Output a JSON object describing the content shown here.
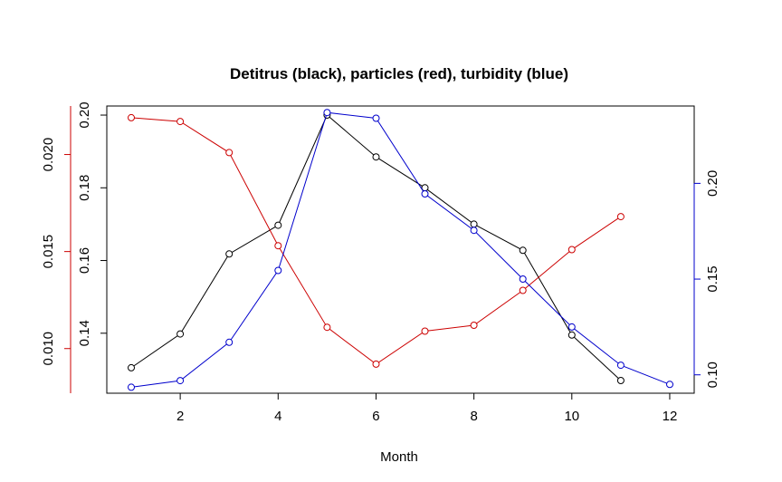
{
  "chart_data": {
    "type": "line",
    "title": "Detitrus (black), particles (red), turbidity (blue)",
    "xlabel": "Month",
    "xlim": [
      0.5,
      12.5
    ],
    "x_ticks": [
      2,
      4,
      6,
      8,
      10,
      12
    ],
    "marker": "open-circle",
    "grid": false,
    "legend": "none",
    "axes": {
      "left_inner": {
        "color": "#000000",
        "lim": [
          0.1235,
          0.2025
        ],
        "ticks": [
          0.14,
          0.16,
          0.18,
          0.2
        ],
        "tick_labels": [
          "0.14",
          "0.16",
          "0.18",
          "0.20"
        ]
      },
      "left_outer": {
        "color": "#cc0000",
        "lim": [
          0.0077,
          0.0225
        ],
        "ticks": [
          0.01,
          0.015,
          0.02
        ],
        "tick_labels": [
          "0.010",
          "0.015",
          "0.020"
        ]
      },
      "right": {
        "color": "#0000cc",
        "lim": [
          0.0904,
          0.2404
        ],
        "ticks": [
          0.1,
          0.15,
          0.2
        ],
        "tick_labels": [
          "0.10",
          "0.15",
          "0.20"
        ]
      }
    },
    "series": [
      {
        "axis": "left_inner",
        "color": "#000000",
        "x": [
          1,
          2,
          3,
          4,
          5,
          6,
          7,
          8,
          9,
          10,
          11
        ],
        "y": [
          0.1305,
          0.1398,
          0.1618,
          0.1697,
          0.2,
          0.1885,
          0.18,
          0.17,
          0.1628,
          0.1395,
          0.127
        ]
      },
      {
        "axis": "left_outer",
        "color": "#cc0000",
        "x": [
          1,
          2,
          3,
          4,
          5,
          6,
          7,
          8,
          9,
          10,
          11
        ],
        "y": [
          0.0219,
          0.0217,
          0.0201,
          0.0153,
          0.0111,
          0.0092,
          0.0109,
          0.0112,
          0.013,
          0.0151,
          0.0168
        ]
      },
      {
        "axis": "right",
        "color": "#0000cc",
        "x": [
          1,
          2,
          3,
          4,
          5,
          6,
          7,
          8,
          9,
          10,
          11,
          12
        ],
        "y": [
          0.0935,
          0.097,
          0.117,
          0.1545,
          0.237,
          0.234,
          0.1945,
          0.1755,
          0.15,
          0.125,
          0.105,
          0.095
        ]
      }
    ]
  }
}
